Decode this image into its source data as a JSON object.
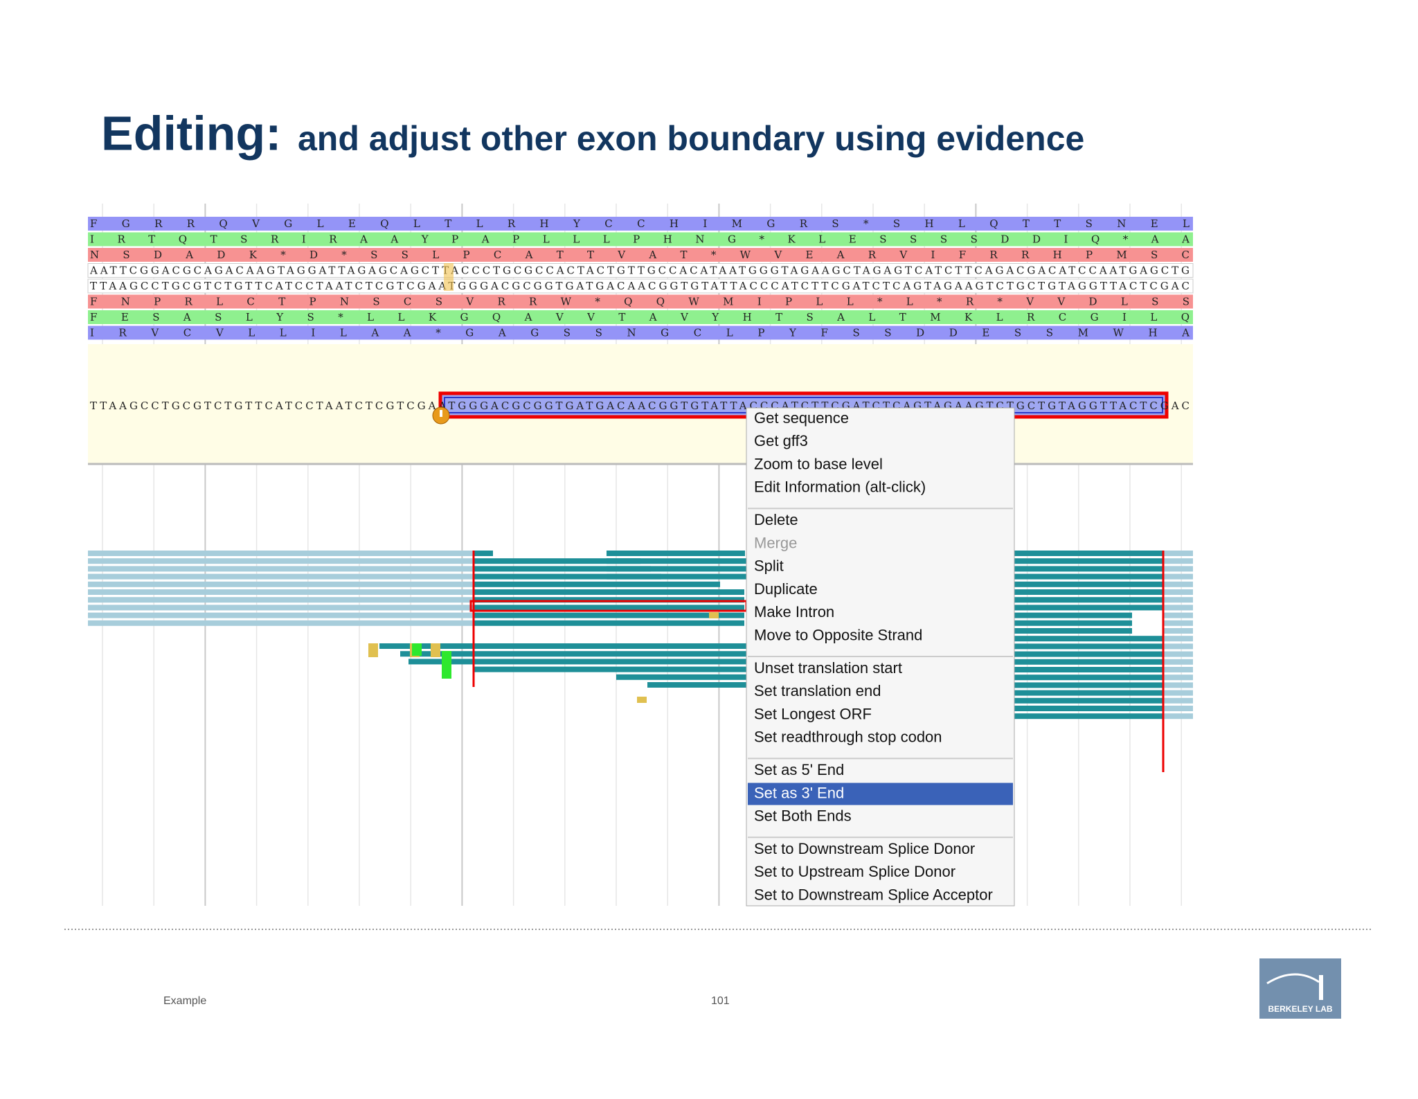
{
  "header": {
    "title": "Editing:",
    "subtitle": "and adjust other exon boundary using evidence"
  },
  "sequence_track": {
    "rows": [
      "F G R R Q V G L E Q L T L R H Y C C H I M G R S * S H L Q T T S N E L",
      "I R T Q T S R I R A A Y P A P L L L P H N G * K L E S S S S D D I Q * A A",
      "N S D A D K * D * S S L P C A T T V A T * W V E A R V I F R R H P M S C",
      "AATTCGGACGCAGACAAGTAGGATTAGAGCAGCTTACCCTGCGCCACTACTGTTGCCACATAATGGGTAGAAGCTAGAGTCATCTTCAGACGACATCCAATGAGCTG",
      "TTAAGCCTGCGTCTGTTCATCCTAATCTCGTCGAATGGGACGCGGTGATGACAACGGTGTATTACCCATCTTCGATCTCAGTAGAAGTCTGCTGTAGGTTACTCGAC",
      "F N P R L C T P N S C S V R R W * Q Q W M I P L L * L * R * V V D L S S",
      "F E S A S L Y S * L L K G Q A V V T A V Y H T S A L T M K L R C G I L Q",
      "I R V C V L L I L A A * G A G S S N G C L P Y F S S D D E S S M W H A"
    ],
    "transcript": "TTAAGCCTGCGTCTGTTCATCCTAATCTCGTCGAATGGGACGCGGTGATGACAACGGTGTATTACCCATCTTCGATCTCAGTAGAAGTCTGCTGTAGGTTACTCGAC"
  },
  "menu": {
    "groups": [
      [
        "Get sequence",
        "Get gff3",
        "Zoom to base level",
        "Edit Information (alt-click)"
      ],
      [
        "Delete",
        "Merge",
        "Split",
        "Duplicate",
        "Make Intron",
        "Move to Opposite Strand"
      ],
      [
        "Unset translation start",
        "Set translation end",
        "Set Longest ORF",
        "Set readthrough stop codon"
      ],
      [
        "Set as 5' End",
        "Set as 3' End",
        "Set Both Ends"
      ],
      [
        "Set to Downstream Splice Donor",
        "Set to Upstream Splice Donor",
        "Set to Downstream Splice Acceptor"
      ]
    ]
  },
  "footer": {
    "left": "Example",
    "page": "101",
    "logo": "BERKELEY LAB"
  }
}
